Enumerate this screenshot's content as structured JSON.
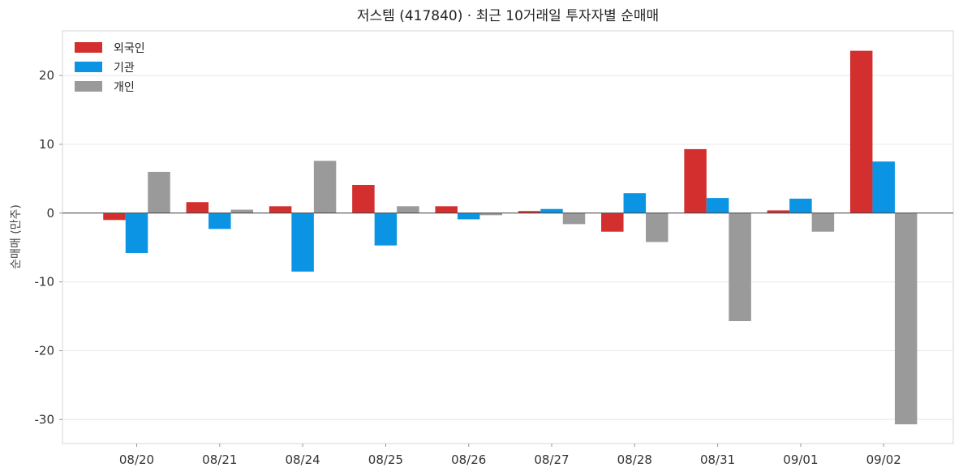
{
  "chart_data": {
    "type": "bar",
    "title": "저스템 (417840) · 최근 10거래일 투자자별 순매매",
    "xlabel": "",
    "ylabel": "순매매 (만주)",
    "categories": [
      "08/20",
      "08/21",
      "08/24",
      "08/25",
      "08/26",
      "08/27",
      "08/28",
      "08/31",
      "09/01",
      "09/02"
    ],
    "series": [
      {
        "name": "외국인",
        "color": "#d32f2f",
        "values": [
          -1.0,
          1.6,
          1.0,
          4.1,
          1.0,
          0.3,
          -2.7,
          9.3,
          0.4,
          23.6
        ]
      },
      {
        "name": "기관",
        "color": "#0a94e3",
        "values": [
          -5.8,
          -2.3,
          -8.5,
          -4.7,
          -0.9,
          0.6,
          2.9,
          2.2,
          2.1,
          7.5
        ]
      },
      {
        "name": "개인",
        "color": "#9a9a9a",
        "values": [
          6.0,
          0.5,
          7.6,
          1.0,
          -0.3,
          -1.6,
          -4.2,
          -15.7,
          -2.7,
          -30.7
        ]
      }
    ],
    "ylim": [
      -33.5,
      26.5
    ],
    "yticks": [
      -30,
      -20,
      -10,
      0,
      10,
      20
    ],
    "yticklabels": [
      "-30",
      "-20",
      "-10",
      "0",
      "10",
      "20"
    ],
    "grid": "horizontal",
    "legend_position": "top-left"
  }
}
